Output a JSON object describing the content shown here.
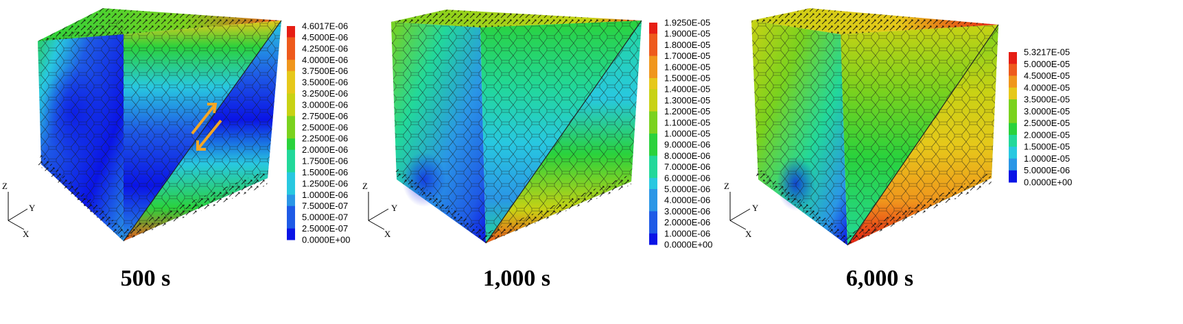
{
  "panels": [
    {
      "caption": "500 s",
      "colorbar_labels": [
        "4.6017E-06",
        "4.5000E-06",
        "4.2500E-06",
        "4.0000E-06",
        "3.7500E-06",
        "3.5000E-06",
        "3.2500E-06",
        "3.0000E-06",
        "2.7500E-06",
        "2.5000E-06",
        "2.2500E-06",
        "2.0000E-06",
        "1.7500E-06",
        "1.5000E-06",
        "1.2500E-06",
        "1.0000E-06",
        "7.5000E-07",
        "5.0000E-07",
        "2.5000E-07",
        "0.0000E+00"
      ],
      "axis_labels": {
        "z": "Z",
        "y": "Y",
        "x": "X"
      }
    },
    {
      "caption": "1,000 s",
      "colorbar_labels": [
        "1.9250E-05",
        "1.9000E-05",
        "1.8000E-05",
        "1.7000E-05",
        "1.6000E-05",
        "1.5000E-05",
        "1.4000E-05",
        "1.3000E-05",
        "1.2000E-05",
        "1.1000E-05",
        "1.0000E-05",
        "9.0000E-06",
        "8.0000E-06",
        "7.0000E-06",
        "6.0000E-06",
        "5.0000E-06",
        "4.0000E-06",
        "3.0000E-06",
        "2.0000E-06",
        "1.0000E-06",
        "0.0000E+00"
      ],
      "axis_labels": {
        "z": "Z",
        "y": "Y",
        "x": "X"
      }
    },
    {
      "caption": "6,000 s",
      "colorbar_labels": [
        "5.3217E-05",
        "5.0000E-05",
        "4.5000E-05",
        "4.0000E-05",
        "3.5000E-05",
        "3.0000E-05",
        "2.5000E-05",
        "2.0000E-05",
        "1.5000E-05",
        "1.0000E-05",
        "5.0000E-06",
        "0.0000E+00"
      ],
      "axis_labels": {
        "z": "Z",
        "y": "Y",
        "x": "X"
      }
    }
  ],
  "colormap": [
    "#0a14e6",
    "#1e5ae6",
    "#2a96e6",
    "#28c8e0",
    "#22d89a",
    "#2ad23c",
    "#7ad21e",
    "#c8d214",
    "#e6c81a",
    "#f0961c",
    "#ee5a1c",
    "#e61e14"
  ],
  "shear_arrow_color": "#f5a623",
  "mesh_color": "#1a1a1a"
}
